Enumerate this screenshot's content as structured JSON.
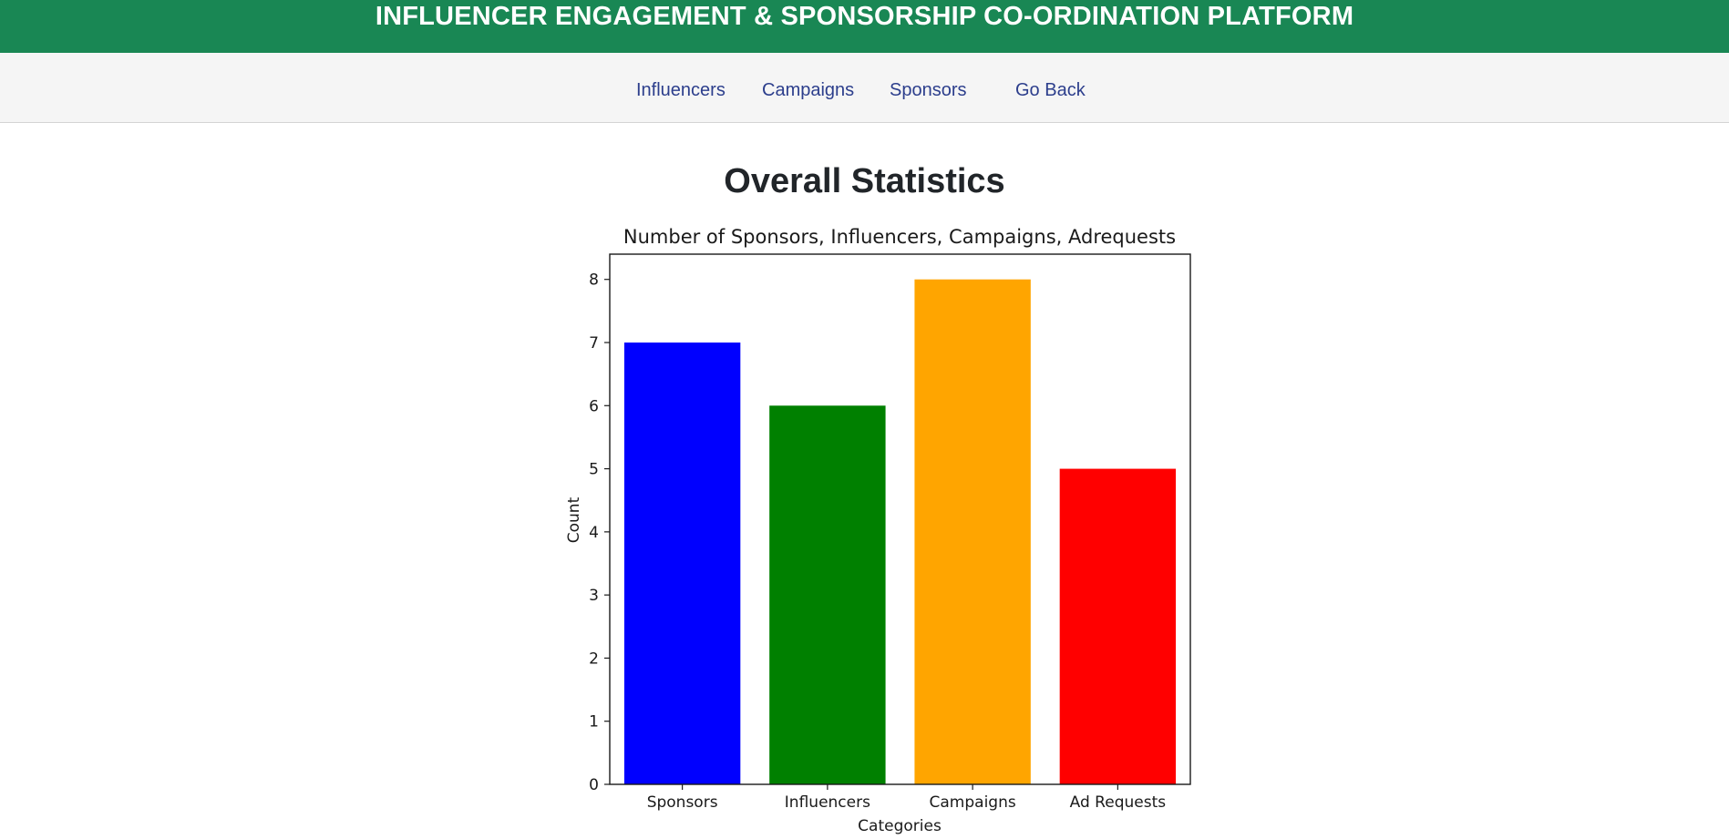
{
  "header": {
    "title": "INFLUENCER ENGAGEMENT & SPONSORSHIP CO-ORDINATION PLATFORM"
  },
  "nav": {
    "items": [
      {
        "label": "Influencers"
      },
      {
        "label": "Campaigns"
      },
      {
        "label": "Sponsors"
      },
      {
        "label": "Go Back"
      }
    ]
  },
  "main": {
    "heading": "Overall Statistics"
  },
  "colors": {
    "header_bg": "#198754",
    "nav_link": "#2c3e8c"
  },
  "chart_data": {
    "type": "bar",
    "title": "Number of Sponsors, Influencers, Campaigns, Adrequests",
    "xlabel": "Categories",
    "ylabel": "Count",
    "categories": [
      "Sponsors",
      "Influencers",
      "Campaigns",
      "Ad Requests"
    ],
    "values": [
      7,
      6,
      8,
      5
    ],
    "colors": [
      "#0000ff",
      "#008000",
      "#ffa500",
      "#ff0000"
    ],
    "ylim": [
      0,
      8.4
    ],
    "yticks": [
      "0",
      "1",
      "2",
      "3",
      "4",
      "5",
      "6",
      "7",
      "8"
    ],
    "grid": false,
    "legend": "none"
  }
}
